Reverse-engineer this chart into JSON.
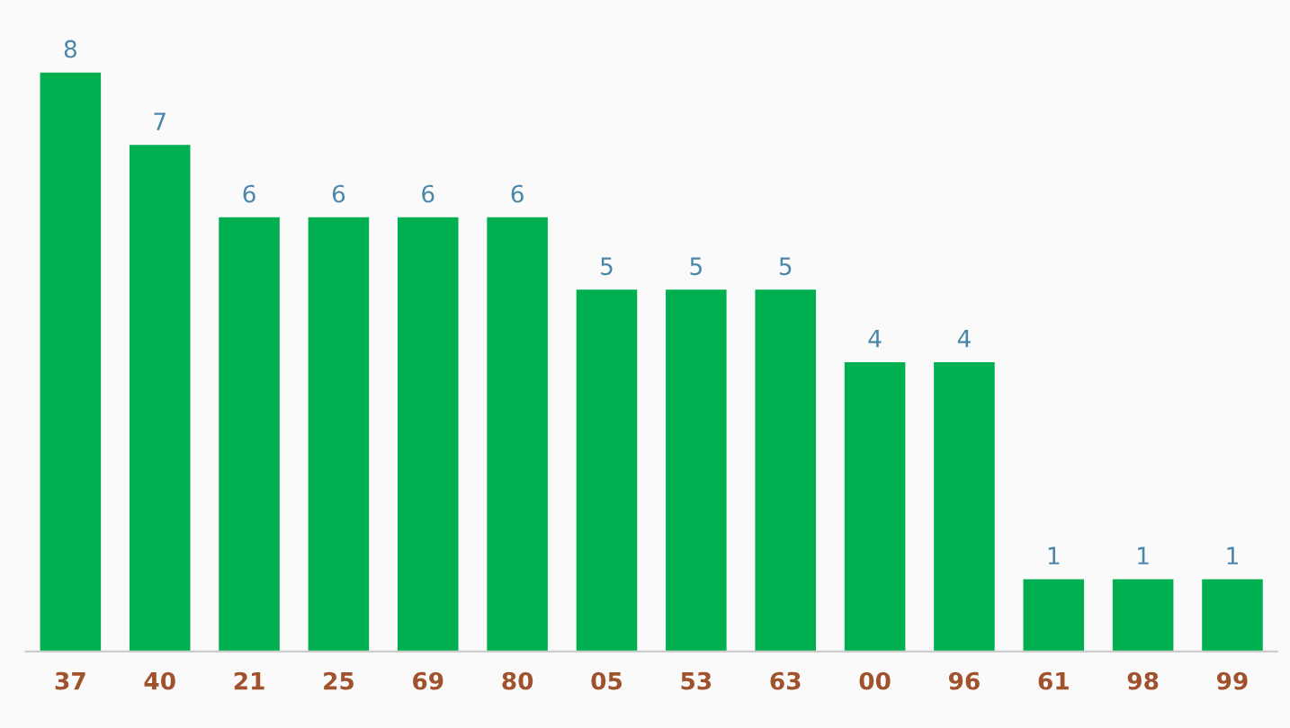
{
  "chart_data": {
    "type": "bar",
    "categories": [
      "37",
      "40",
      "21",
      "25",
      "69",
      "80",
      "05",
      "53",
      "63",
      "00",
      "96",
      "61",
      "98",
      "99"
    ],
    "values": [
      8,
      7,
      6,
      6,
      6,
      6,
      5,
      5,
      5,
      4,
      4,
      1,
      1,
      1
    ],
    "color": "#00b050",
    "data_labels": true,
    "grid": false,
    "legend": false,
    "tick_labels": "x"
  }
}
